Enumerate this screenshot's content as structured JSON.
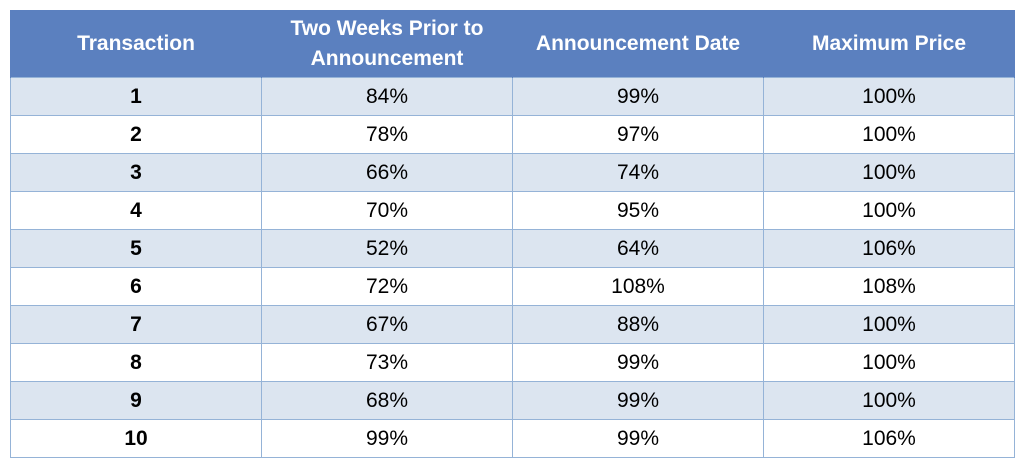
{
  "chart_data": {
    "type": "table",
    "columns": [
      "Transaction",
      "Two Weeks Prior to Announcement",
      "Announcement Date",
      "Maximum Price"
    ],
    "rows": [
      [
        "1",
        "84%",
        "99%",
        "100%"
      ],
      [
        "2",
        "78%",
        "97%",
        "100%"
      ],
      [
        "3",
        "66%",
        "74%",
        "100%"
      ],
      [
        "4",
        "70%",
        "95%",
        "100%"
      ],
      [
        "5",
        "52%",
        "64%",
        "106%"
      ],
      [
        "6",
        "72%",
        "108%",
        "108%"
      ],
      [
        "7",
        "67%",
        "88%",
        "100%"
      ],
      [
        "8",
        "73%",
        "99%",
        "100%"
      ],
      [
        "9",
        "68%",
        "99%",
        "100%"
      ],
      [
        "10",
        "99%",
        "99%",
        "106%"
      ]
    ]
  },
  "colors": {
    "header_bg": "#5b80bf",
    "header_text": "#ffffff",
    "band_row": "#dce5f0",
    "plain_row": "#ffffff",
    "grid": "#95b3d7"
  }
}
